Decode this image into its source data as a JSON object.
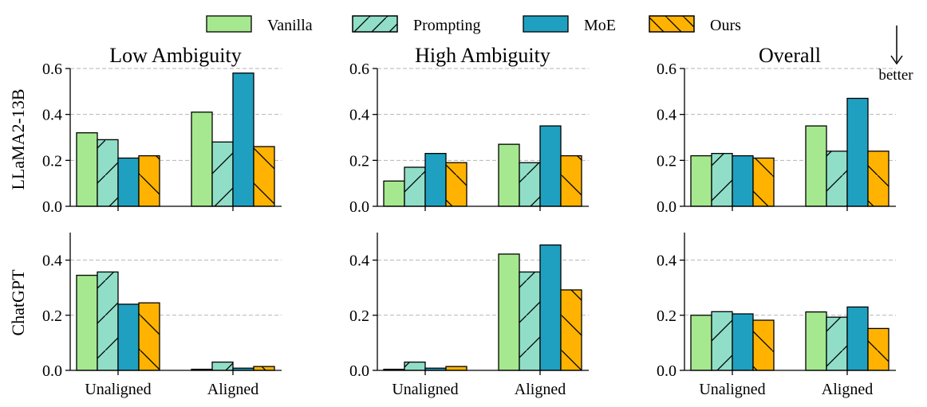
{
  "legend": [
    {
      "name": "Vanilla",
      "color": "#a6e88f",
      "hatch": "none"
    },
    {
      "name": "Prompting",
      "color": "#90dec8",
      "hatch": "forward"
    },
    {
      "name": "MoE",
      "color": "#20a0c0",
      "hatch": "none"
    },
    {
      "name": "Ours",
      "color": "#ffb300",
      "hatch": "back"
    }
  ],
  "note": "better",
  "row_labels": [
    "LLaMA2-13B",
    "ChatGPT"
  ],
  "column_titles": [
    "Low Ambiguity",
    "High Ambiguity",
    "Overall"
  ],
  "chart_data": [
    {
      "type": "bar",
      "title": "Low Ambiguity",
      "ylabel": "LLaMA2-13B",
      "categories": [
        "Unaligned",
        "Aligned"
      ],
      "ylim": [
        0,
        0.6
      ],
      "yticks": [
        "0.0",
        "0.2",
        "0.4",
        "0.6"
      ],
      "grid": true,
      "series": [
        {
          "name": "Vanilla",
          "values": [
            0.32,
            0.41
          ]
        },
        {
          "name": "Prompting",
          "values": [
            0.29,
            0.28
          ]
        },
        {
          "name": "MoE",
          "values": [
            0.21,
            0.58
          ]
        },
        {
          "name": "Ours",
          "values": [
            0.22,
            0.26
          ]
        }
      ]
    },
    {
      "type": "bar",
      "title": "High Ambiguity",
      "categories": [
        "Unaligned",
        "Aligned"
      ],
      "ylim": [
        0,
        0.6
      ],
      "yticks": [
        "0.0",
        "0.2",
        "0.4",
        "0.6"
      ],
      "grid": true,
      "series": [
        {
          "name": "Vanilla",
          "values": [
            0.11,
            0.27
          ]
        },
        {
          "name": "Prompting",
          "values": [
            0.17,
            0.19
          ]
        },
        {
          "name": "MoE",
          "values": [
            0.23,
            0.35
          ]
        },
        {
          "name": "Ours",
          "values": [
            0.19,
            0.22
          ]
        }
      ]
    },
    {
      "type": "bar",
      "title": "Overall",
      "categories": [
        "Unaligned",
        "Aligned"
      ],
      "ylim": [
        0,
        0.6
      ],
      "yticks": [
        "0.0",
        "0.2",
        "0.4",
        "0.6"
      ],
      "grid": true,
      "series": [
        {
          "name": "Vanilla",
          "values": [
            0.22,
            0.35
          ]
        },
        {
          "name": "Prompting",
          "values": [
            0.23,
            0.24
          ]
        },
        {
          "name": "MoE",
          "values": [
            0.22,
            0.47
          ]
        },
        {
          "name": "Ours",
          "values": [
            0.21,
            0.24
          ]
        }
      ]
    },
    {
      "type": "bar",
      "ylabel": "ChatGPT",
      "categories": [
        "Unaligned",
        "Aligned"
      ],
      "ylim": [
        0,
        0.5
      ],
      "yticks": [
        "0.0",
        "0.2",
        "0.4"
      ],
      "grid": true,
      "series": [
        {
          "name": "Vanilla",
          "values": [
            0.345,
            0.004
          ]
        },
        {
          "name": "Prompting",
          "values": [
            0.357,
            0.03
          ]
        },
        {
          "name": "MoE",
          "values": [
            0.24,
            0.008
          ]
        },
        {
          "name": "Ours",
          "values": [
            0.245,
            0.014
          ]
        }
      ]
    },
    {
      "type": "bar",
      "categories": [
        "Unaligned",
        "Aligned"
      ],
      "ylim": [
        0,
        0.5
      ],
      "yticks": [
        "0.0",
        "0.2",
        "0.4"
      ],
      "grid": true,
      "series": [
        {
          "name": "Vanilla",
          "values": [
            0.004,
            0.422
          ]
        },
        {
          "name": "Prompting",
          "values": [
            0.03,
            0.357
          ]
        },
        {
          "name": "MoE",
          "values": [
            0.008,
            0.455
          ]
        },
        {
          "name": "Ours",
          "values": [
            0.014,
            0.292
          ]
        }
      ]
    },
    {
      "type": "bar",
      "categories": [
        "Unaligned",
        "Aligned"
      ],
      "ylim": [
        0,
        0.5
      ],
      "yticks": [
        "0.0",
        "0.2",
        "0.4"
      ],
      "grid": true,
      "series": [
        {
          "name": "Vanilla",
          "values": [
            0.2,
            0.212
          ]
        },
        {
          "name": "Prompting",
          "values": [
            0.213,
            0.193
          ]
        },
        {
          "name": "MoE",
          "values": [
            0.205,
            0.23
          ]
        },
        {
          "name": "Ours",
          "values": [
            0.182,
            0.152
          ]
        }
      ]
    }
  ]
}
